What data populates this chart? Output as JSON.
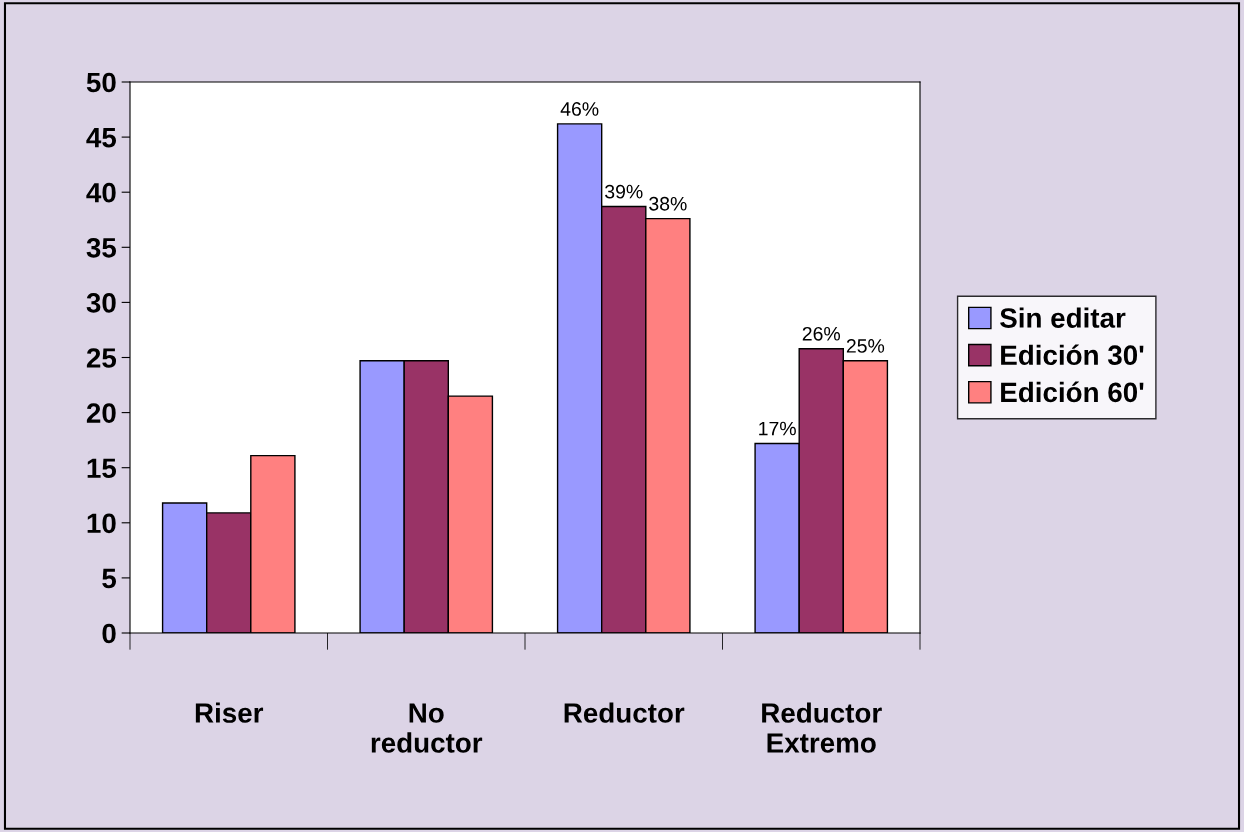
{
  "chart_data": {
    "type": "bar",
    "categories": [
      "Riser",
      "No\nreductor",
      "Reductor",
      "Reductor\nExtremo"
    ],
    "series": [
      {
        "name": "Sin editar",
        "color": "#9999ff",
        "values": [
          11.8,
          24.7,
          46.2,
          17.2
        ],
        "value_labels": [
          null,
          null,
          "46%",
          "17%"
        ]
      },
      {
        "name": "Edición 30'",
        "color": "#993366",
        "values": [
          10.9,
          24.7,
          38.7,
          25.8
        ],
        "value_labels": [
          null,
          null,
          "39%",
          "26%"
        ]
      },
      {
        "name": "Edición 60'",
        "color": "#ff8080",
        "values": [
          16.1,
          21.5,
          37.6,
          24.7
        ],
        "value_labels": [
          null,
          null,
          "38%",
          "25%"
        ]
      }
    ],
    "ylim": [
      0,
      50
    ],
    "yticks": [
      0,
      5,
      10,
      15,
      20,
      25,
      30,
      35,
      40,
      45,
      50
    ],
    "grid": false,
    "legend": "right"
  }
}
